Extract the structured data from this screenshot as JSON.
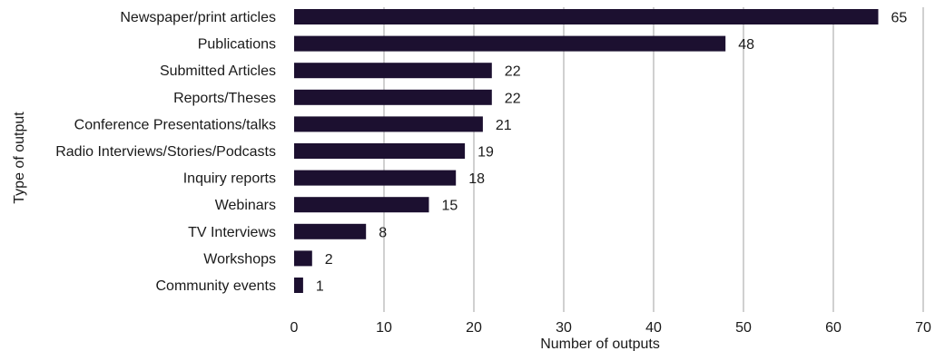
{
  "chart_data": {
    "type": "bar",
    "orientation": "horizontal",
    "categories": [
      "Newspaper/print articles",
      "Publications",
      "Submitted Articles",
      "Reports/Theses",
      "Conference Presentations/talks",
      "Radio Interviews/Stories/Podcasts",
      "Inquiry reports",
      "Webinars",
      "TV Interviews",
      "Workshops",
      "Community events"
    ],
    "values": [
      65,
      48,
      22,
      22,
      21,
      19,
      18,
      15,
      8,
      2,
      1
    ],
    "xlabel": "Number of outputs",
    "ylabel": "Type of output",
    "xlim": [
      0,
      70
    ],
    "xticks": [
      0,
      10,
      20,
      30,
      40,
      50,
      60,
      70
    ],
    "grid": "vertical",
    "data_labels": true,
    "bar_color": "#1c1030",
    "grid_color": "#d0d0d0"
  }
}
